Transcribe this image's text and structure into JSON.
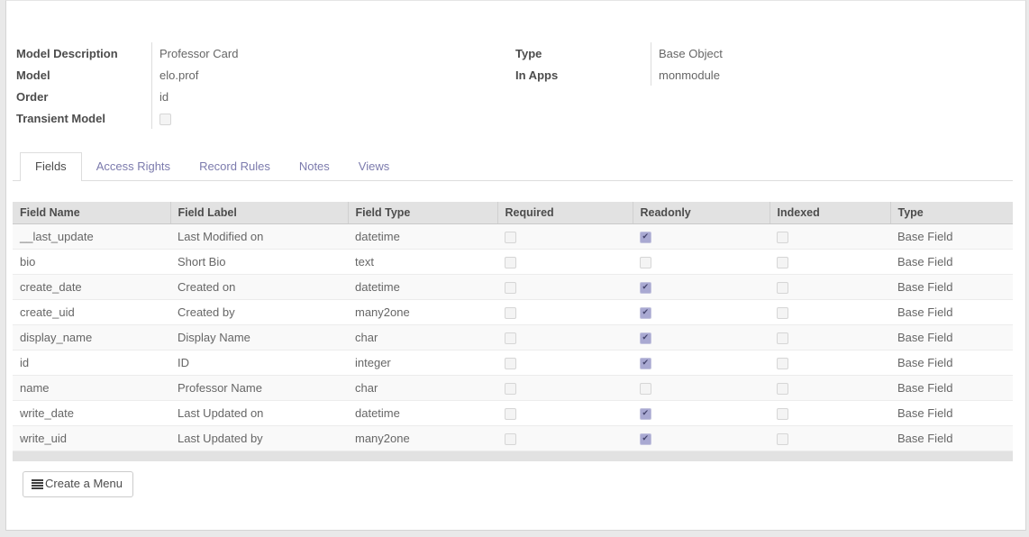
{
  "colors": {
    "accent_purple": "#7c7bad",
    "table_header_bg": "#e2e2e2",
    "checkbox_checked_bg": "#a9a9d2",
    "checkbox_check": "#45456e",
    "row_stripe": "#f9f9f9"
  },
  "info": {
    "left": [
      {
        "label": "Model Description",
        "value": "Professor Card"
      },
      {
        "label": "Model",
        "value": "elo.prof"
      },
      {
        "label": "Order",
        "value": "id"
      },
      {
        "label": "Transient Model",
        "checkbox": false
      }
    ],
    "right": [
      {
        "label": "Type",
        "value": "Base Object"
      },
      {
        "label": "In Apps",
        "value": "monmodule"
      }
    ]
  },
  "tabs": [
    {
      "label": "Fields",
      "active": true
    },
    {
      "label": "Access Rights",
      "active": false
    },
    {
      "label": "Record Rules",
      "active": false
    },
    {
      "label": "Notes",
      "active": false
    },
    {
      "label": "Views",
      "active": false
    }
  ],
  "table": {
    "columns": [
      "Field Name",
      "Field Label",
      "Field Type",
      "Required",
      "Readonly",
      "Indexed",
      "Type"
    ],
    "rows": [
      {
        "field_name": "__last_update",
        "field_label": "Last Modified on",
        "field_type": "datetime",
        "required": false,
        "readonly": true,
        "indexed": false,
        "type": "Base Field"
      },
      {
        "field_name": "bio",
        "field_label": "Short Bio",
        "field_type": "text",
        "required": false,
        "readonly": false,
        "indexed": false,
        "type": "Base Field"
      },
      {
        "field_name": "create_date",
        "field_label": "Created on",
        "field_type": "datetime",
        "required": false,
        "readonly": true,
        "indexed": false,
        "type": "Base Field"
      },
      {
        "field_name": "create_uid",
        "field_label": "Created by",
        "field_type": "many2one",
        "required": false,
        "readonly": true,
        "indexed": false,
        "type": "Base Field"
      },
      {
        "field_name": "display_name",
        "field_label": "Display Name",
        "field_type": "char",
        "required": false,
        "readonly": true,
        "indexed": false,
        "type": "Base Field"
      },
      {
        "field_name": "id",
        "field_label": "ID",
        "field_type": "integer",
        "required": false,
        "readonly": true,
        "indexed": false,
        "type": "Base Field"
      },
      {
        "field_name": "name",
        "field_label": "Professor Name",
        "field_type": "char",
        "required": false,
        "readonly": false,
        "indexed": false,
        "type": "Base Field"
      },
      {
        "field_name": "write_date",
        "field_label": "Last Updated on",
        "field_type": "datetime",
        "required": false,
        "readonly": true,
        "indexed": false,
        "type": "Base Field"
      },
      {
        "field_name": "write_uid",
        "field_label": "Last Updated by",
        "field_type": "many2one",
        "required": false,
        "readonly": true,
        "indexed": false,
        "type": "Base Field"
      }
    ]
  },
  "footer": {
    "create_menu_label": "Create a Menu"
  }
}
